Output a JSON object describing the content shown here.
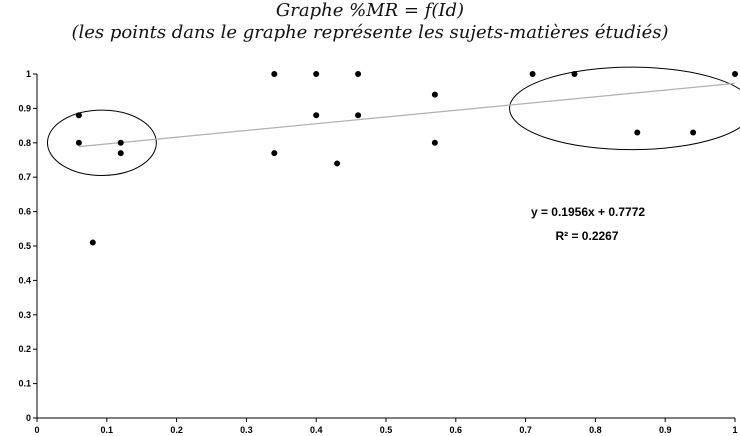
{
  "chart_data": {
    "type": "scatter",
    "title": "Graphe %MR = f(Id)",
    "subtitle": "(les points dans le graphe représente les sujets-matières étudiés)",
    "xlabel": "",
    "ylabel": "",
    "xlim": [
      0,
      1
    ],
    "ylim": [
      0,
      1
    ],
    "x_ticks": [
      "0",
      "0.1",
      "0.2",
      "0.3",
      "0.4",
      "0.5",
      "0.6",
      "0.7",
      "0.8",
      "0.9",
      "1"
    ],
    "y_ticks": [
      "0",
      "0.1",
      "0.2",
      "0.3",
      "0.4",
      "0.5",
      "0.6",
      "0.7",
      "0.8",
      "0.9",
      "1"
    ],
    "grid": false,
    "points": [
      {
        "x": 0.06,
        "y": 0.88
      },
      {
        "x": 0.06,
        "y": 0.8
      },
      {
        "x": 0.12,
        "y": 0.8
      },
      {
        "x": 0.12,
        "y": 0.77
      },
      {
        "x": 0.08,
        "y": 0.51
      },
      {
        "x": 0.34,
        "y": 1.0
      },
      {
        "x": 0.4,
        "y": 1.0
      },
      {
        "x": 0.46,
        "y": 1.0
      },
      {
        "x": 0.34,
        "y": 0.77
      },
      {
        "x": 0.4,
        "y": 0.88
      },
      {
        "x": 0.46,
        "y": 0.88
      },
      {
        "x": 0.43,
        "y": 0.74
      },
      {
        "x": 0.57,
        "y": 0.94
      },
      {
        "x": 0.57,
        "y": 0.8
      },
      {
        "x": 0.71,
        "y": 1.0
      },
      {
        "x": 0.77,
        "y": 1.0
      },
      {
        "x": 1.0,
        "y": 1.0
      },
      {
        "x": 0.86,
        "y": 0.83
      },
      {
        "x": 0.94,
        "y": 0.83
      }
    ],
    "trendline": {
      "slope": 0.1956,
      "intercept": 0.7772,
      "color": "#b0b0b0",
      "equation_label": "y = 0.1956x + 0.7772",
      "r2_label": "R² = 0.2267"
    },
    "annotations": [
      {
        "shape": "ellipse",
        "cx": 0.093,
        "cy": 0.8,
        "rx": 0.078,
        "ry": 0.095
      },
      {
        "shape": "ellipse",
        "cx": 0.852,
        "cy": 0.9,
        "rx": 0.175,
        "ry": 0.12
      }
    ]
  }
}
